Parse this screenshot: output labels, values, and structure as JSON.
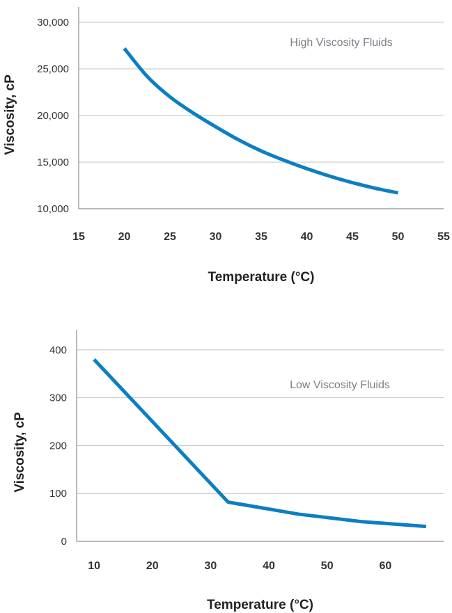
{
  "chart_data": [
    {
      "type": "line",
      "annotation": "High Viscosity Fluids",
      "xlabel": "Temperature (°C)",
      "ylabel": "Viscosity, cP",
      "xlim": [
        15,
        55
      ],
      "ylim": [
        10000,
        30000
      ],
      "xticks": [
        "15",
        "20",
        "25",
        "30",
        "35",
        "40",
        "45",
        "50",
        "55"
      ],
      "yticks": [
        "10,000",
        "15,000",
        "20,000",
        "25,000",
        "30,000"
      ],
      "grid": "horizontal",
      "line_color": "#0a7fc1",
      "series": [
        {
          "x": [
            20,
            22.5,
            25,
            27.5,
            30,
            32.5,
            35,
            37.5,
            40,
            42.5,
            45,
            47.5,
            50
          ],
          "values": [
            27200,
            24200,
            22000,
            20300,
            18800,
            17400,
            16200,
            15200,
            14300,
            13500,
            12800,
            12200,
            11700
          ]
        }
      ]
    },
    {
      "type": "line",
      "annotation": "Low Viscosity Fluids",
      "xlabel": "Temperature (°C)",
      "ylabel": "Viscosity, cP",
      "xlim": [
        7,
        70
      ],
      "ylim": [
        0,
        410
      ],
      "xticks": [
        "10",
        "20",
        "30",
        "40",
        "50",
        "60"
      ],
      "yticks": [
        "0",
        "100",
        "200",
        "300",
        "400"
      ],
      "grid": "horizontal",
      "line_color": "#0a7fc1",
      "series": [
        {
          "x": [
            10,
            33,
            45,
            56,
            67
          ],
          "values": [
            380,
            82,
            57,
            41,
            31
          ]
        }
      ]
    }
  ]
}
